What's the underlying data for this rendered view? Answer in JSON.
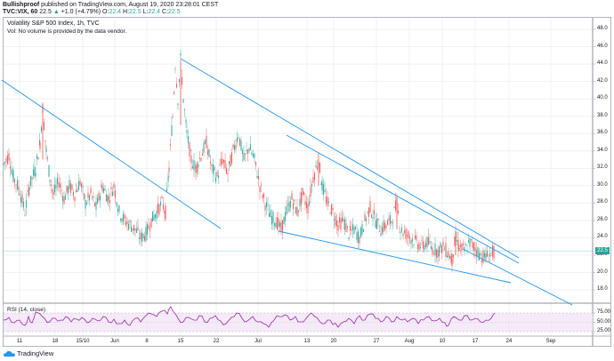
{
  "header": {
    "author": "Bullishproof",
    "published": "published on TradingView.com, August 19, 2020 23:28:01 CEST",
    "symbol": "TVC:VIX, 60",
    "last": "22.5",
    "change": "+1.0 (+4.79%)",
    "o_label": "O:",
    "o": "22.4",
    "h_label": "H:",
    "h": "22.5",
    "l_label": "L:",
    "l": "22.4",
    "c_label": "C:",
    "c": "22.5"
  },
  "legend": {
    "title": "Volatility S&P 500 Index, 1h, TVC",
    "volume_note": "Vol: No volume is provided by the data vendor."
  },
  "rsi": {
    "label": "RSI (14, close)",
    "levels": [
      "75.00",
      "50.00",
      "25.00"
    ]
  },
  "footer": {
    "brand": "TradingView"
  },
  "colors": {
    "up": "#26a69a",
    "down": "#ef5350",
    "trendline": "#2196f3",
    "rsi_line": "#9c27b0",
    "rsi_band": "#f3e5f5",
    "grid": "#eef1f6",
    "price_line": "#26a69a"
  },
  "chart_data": {
    "type": "candlestick",
    "title": "Volatility S&P 500 Index, 1h, TVC",
    "symbol": "TVC:VIX",
    "interval": "60",
    "yaxis": {
      "ticks": [
        "48.0",
        "46.0",
        "44.0",
        "42.0",
        "40.0",
        "38.0",
        "36.0",
        "34.0",
        "32.0",
        "30.0",
        "28.0",
        "26.0",
        "24.0",
        "22.0",
        "20.0",
        "18.0"
      ],
      "range": [
        17.5,
        48.5
      ]
    },
    "xaxis": {
      "ticks": [
        "11",
        "18",
        "15/10",
        "Jun",
        "8",
        "15",
        "22",
        "Jul",
        "13",
        "20",
        "27",
        "Aug",
        "10",
        "17",
        "24",
        "Sep"
      ]
    },
    "last_price": "22.5",
    "price_path": [
      [
        4,
        32.5
      ],
      [
        10,
        33.5
      ],
      [
        15,
        31
      ],
      [
        22,
        29.5
      ],
      [
        28,
        27
      ],
      [
        33,
        30
      ],
      [
        40,
        32
      ],
      [
        45,
        35
      ],
      [
        48,
        39
      ],
      [
        52,
        34
      ],
      [
        56,
        31
      ],
      [
        60,
        29
      ],
      [
        66,
        30.5
      ],
      [
        72,
        28.5
      ],
      [
        78,
        30
      ],
      [
        84,
        29
      ],
      [
        90,
        30.5
      ],
      [
        96,
        28
      ],
      [
        102,
        29
      ],
      [
        108,
        27.5
      ],
      [
        115,
        30
      ],
      [
        122,
        28.5
      ],
      [
        128,
        30
      ],
      [
        134,
        27
      ],
      [
        140,
        26
      ],
      [
        146,
        25.5
      ],
      [
        152,
        25
      ],
      [
        158,
        24
      ],
      [
        164,
        24.5
      ],
      [
        170,
        26
      ],
      [
        176,
        27
      ],
      [
        182,
        28
      ],
      [
        186,
        27
      ],
      [
        190,
        32
      ],
      [
        194,
        38
      ],
      [
        197,
        44
      ],
      [
        200,
        40
      ],
      [
        203,
        44.5
      ],
      [
        206,
        40
      ],
      [
        210,
        36
      ],
      [
        215,
        33
      ],
      [
        220,
        32
      ],
      [
        226,
        33.5
      ],
      [
        232,
        35
      ],
      [
        238,
        32
      ],
      [
        244,
        31
      ],
      [
        250,
        33
      ],
      [
        256,
        31.5
      ],
      [
        262,
        34
      ],
      [
        268,
        36
      ],
      [
        274,
        33
      ],
      [
        280,
        34.5
      ],
      [
        286,
        33
      ],
      [
        292,
        30
      ],
      [
        298,
        28
      ],
      [
        304,
        26.5
      ],
      [
        310,
        26
      ],
      [
        316,
        25
      ],
      [
        322,
        27
      ],
      [
        328,
        28.5
      ],
      [
        334,
        27
      ],
      [
        340,
        29
      ],
      [
        346,
        27.5
      ],
      [
        352,
        31
      ],
      [
        358,
        33
      ],
      [
        362,
        30
      ],
      [
        368,
        28
      ],
      [
        374,
        27
      ],
      [
        380,
        25.5
      ],
      [
        386,
        26
      ],
      [
        392,
        24.5
      ],
      [
        398,
        25
      ],
      [
        404,
        24
      ],
      [
        410,
        26
      ],
      [
        416,
        27.5
      ],
      [
        422,
        26
      ],
      [
        428,
        25
      ],
      [
        434,
        25.5
      ],
      [
        440,
        26
      ],
      [
        446,
        28
      ],
      [
        450,
        25
      ],
      [
        456,
        24.5
      ],
      [
        462,
        24
      ],
      [
        468,
        23.5
      ],
      [
        474,
        23
      ],
      [
        480,
        23.5
      ],
      [
        486,
        22.8
      ],
      [
        492,
        22.5
      ],
      [
        498,
        23
      ],
      [
        504,
        22.2
      ],
      [
        508,
        21.5
      ],
      [
        512,
        24
      ],
      [
        516,
        23
      ],
      [
        522,
        22.5
      ],
      [
        528,
        23.5
      ],
      [
        534,
        22.8
      ],
      [
        540,
        22
      ],
      [
        546,
        21.8
      ],
      [
        552,
        22.2
      ],
      [
        556,
        22.5
      ]
    ],
    "trendlines": [
      {
        "from": [
          2,
          90
        ],
        "to": [
          248,
          257
        ]
      },
      {
        "from": [
          203,
          66
        ],
        "to": [
          583,
          290
        ]
      },
      {
        "from": [
          322,
          152
        ],
        "to": [
          583,
          296
        ]
      },
      {
        "from": [
          313,
          260
        ],
        "to": [
          574,
          318
        ]
      },
      {
        "from": [
          520,
          280
        ],
        "to": [
          643,
          343
        ]
      }
    ],
    "rsi_path": [
      [
        4,
        360
      ],
      [
        10,
        357
      ],
      [
        16,
        363
      ],
      [
        22,
        360
      ],
      [
        28,
        366
      ],
      [
        32,
        356
      ],
      [
        36,
        363
      ],
      [
        40,
        351
      ],
      [
        45,
        353
      ],
      [
        50,
        358
      ],
      [
        56,
        362
      ],
      [
        62,
        358
      ],
      [
        68,
        360
      ],
      [
        74,
        356
      ],
      [
        80,
        362
      ],
      [
        86,
        359
      ],
      [
        92,
        357
      ],
      [
        98,
        363
      ],
      [
        104,
        358
      ],
      [
        110,
        361
      ],
      [
        116,
        356
      ],
      [
        122,
        362
      ],
      [
        128,
        359
      ],
      [
        134,
        364
      ],
      [
        140,
        360
      ],
      [
        146,
        366
      ],
      [
        152,
        358
      ],
      [
        158,
        362
      ],
      [
        164,
        355
      ],
      [
        170,
        353
      ],
      [
        176,
        356
      ],
      [
        182,
        350
      ],
      [
        188,
        353
      ],
      [
        192,
        345
      ],
      [
        196,
        352
      ],
      [
        200,
        358
      ],
      [
        206,
        362
      ],
      [
        212,
        357
      ],
      [
        218,
        360
      ],
      [
        224,
        355
      ],
      [
        230,
        362
      ],
      [
        236,
        358
      ],
      [
        242,
        355
      ],
      [
        248,
        361
      ],
      [
        254,
        364
      ],
      [
        260,
        357
      ],
      [
        266,
        352
      ],
      [
        272,
        358
      ],
      [
        278,
        361
      ],
      [
        284,
        356
      ],
      [
        290,
        362
      ],
      [
        296,
        364
      ],
      [
        302,
        368
      ],
      [
        308,
        360
      ],
      [
        314,
        356
      ],
      [
        320,
        354
      ],
      [
        326,
        360
      ],
      [
        332,
        356
      ],
      [
        338,
        362
      ],
      [
        344,
        358
      ],
      [
        350,
        352
      ],
      [
        356,
        357
      ],
      [
        362,
        364
      ],
      [
        368,
        360
      ],
      [
        374,
        365
      ],
      [
        380,
        368
      ],
      [
        386,
        362
      ],
      [
        392,
        358
      ],
      [
        398,
        364
      ],
      [
        404,
        355
      ],
      [
        410,
        360
      ],
      [
        416,
        353
      ],
      [
        422,
        358
      ],
      [
        428,
        362
      ],
      [
        434,
        356
      ],
      [
        440,
        362
      ],
      [
        446,
        356
      ],
      [
        452,
        360
      ],
      [
        458,
        362
      ],
      [
        464,
        358
      ],
      [
        470,
        364
      ],
      [
        476,
        360
      ],
      [
        482,
        356
      ],
      [
        488,
        361
      ],
      [
        494,
        358
      ],
      [
        500,
        363
      ],
      [
        504,
        366
      ],
      [
        510,
        356
      ],
      [
        516,
        360
      ],
      [
        522,
        355
      ],
      [
        528,
        360
      ],
      [
        534,
        358
      ],
      [
        540,
        362
      ],
      [
        546,
        360
      ],
      [
        552,
        358
      ],
      [
        556,
        352
      ]
    ]
  }
}
